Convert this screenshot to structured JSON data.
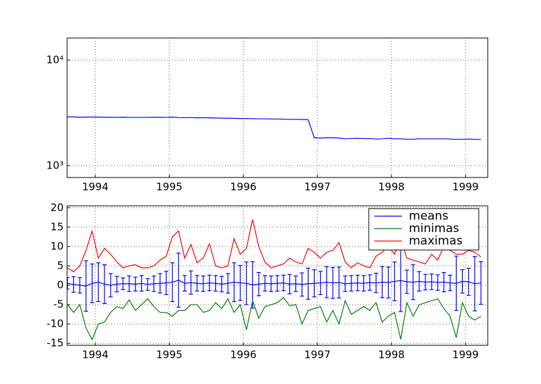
{
  "chart_data": [
    {
      "type": "line",
      "log_y": true,
      "grid": true,
      "x": [
        1993.625,
        1993.708,
        1993.792,
        1993.875,
        1993.958,
        1994.042,
        1994.125,
        1994.208,
        1994.292,
        1994.375,
        1994.458,
        1994.542,
        1994.625,
        1994.708,
        1994.792,
        1994.875,
        1994.958,
        1995.042,
        1995.125,
        1995.208,
        1995.292,
        1995.375,
        1995.458,
        1995.542,
        1995.625,
        1995.708,
        1995.792,
        1995.875,
        1995.958,
        1996.042,
        1996.125,
        1996.208,
        1996.292,
        1996.375,
        1996.458,
        1996.542,
        1996.625,
        1996.708,
        1996.792,
        1996.875,
        1996.958,
        1997.042,
        1997.125,
        1997.208,
        1997.292,
        1997.375,
        1997.458,
        1997.542,
        1997.625,
        1997.708,
        1997.792,
        1997.875,
        1997.958,
        1998.042,
        1998.125,
        1998.208,
        1998.292,
        1998.375,
        1998.458,
        1998.542,
        1998.625,
        1998.708,
        1998.792,
        1998.875,
        1998.958,
        1999.042,
        1999.125,
        1999.208
      ],
      "series": [
        {
          "color": "#0000ff",
          "values": [
            2900,
            2900,
            2880,
            2890,
            2890,
            2890,
            2880,
            2880,
            2870,
            2880,
            2870,
            2870,
            2870,
            2870,
            2880,
            2880,
            2870,
            2890,
            2860,
            2850,
            2860,
            2840,
            2850,
            2840,
            2830,
            2820,
            2820,
            2810,
            2800,
            2800,
            2790,
            2780,
            2780,
            2770,
            2770,
            2760,
            2750,
            2750,
            2740,
            2730,
            1840,
            1830,
            1840,
            1840,
            1830,
            1800,
            1810,
            1820,
            1810,
            1810,
            1790,
            1800,
            1820,
            1800,
            1800,
            1780,
            1780,
            1800,
            1800,
            1800,
            1800,
            1800,
            1790,
            1780,
            1780,
            1790,
            1780,
            1770
          ]
        }
      ],
      "xlim": [
        1993.62,
        1999.3
      ],
      "xticks": [
        1994,
        1995,
        1996,
        1997,
        1998,
        1999
      ],
      "ylim": [
        774,
        16200
      ],
      "yticks": [
        {
          "value": 1000,
          "label": "10³"
        },
        {
          "value": 10000,
          "label": "10⁴"
        }
      ]
    },
    {
      "type": "line",
      "grid": true,
      "legend": "upper right",
      "x": [
        1993.625,
        1993.708,
        1993.792,
        1993.875,
        1993.958,
        1994.042,
        1994.125,
        1994.208,
        1994.292,
        1994.375,
        1994.458,
        1994.542,
        1994.625,
        1994.708,
        1994.792,
        1994.875,
        1994.958,
        1995.042,
        1995.125,
        1995.208,
        1995.292,
        1995.375,
        1995.458,
        1995.542,
        1995.625,
        1995.708,
        1995.792,
        1995.875,
        1995.958,
        1996.042,
        1996.125,
        1996.208,
        1996.292,
        1996.375,
        1996.458,
        1996.542,
        1996.625,
        1996.708,
        1996.792,
        1996.875,
        1996.958,
        1997.042,
        1997.125,
        1997.208,
        1997.292,
        1997.375,
        1997.458,
        1997.542,
        1997.625,
        1997.708,
        1997.792,
        1997.875,
        1997.958,
        1998.042,
        1998.125,
        1998.208,
        1998.292,
        1998.375,
        1998.458,
        1998.542,
        1998.625,
        1998.708,
        1998.792,
        1998.875,
        1998.958,
        1999.042,
        1999.125,
        1999.208
      ],
      "series": [
        {
          "name": "means",
          "color": "#0000ff",
          "values": [
            0.5,
            0.2,
            0,
            -0.2,
            0.5,
            0.8,
            0.3,
            0,
            0.3,
            0.4,
            0.4,
            0.3,
            0.5,
            0.2,
            0.4,
            0.5,
            0.6,
            0.8,
            1.3,
            0.5,
            0.7,
            0.5,
            0.4,
            0.6,
            0.5,
            0.3,
            0.5,
            0.8,
            0.6,
            0.5,
            0.1,
            0.3,
            0.5,
            0.4,
            0.5,
            0.6,
            0.3,
            0.4,
            0.2,
            0.4,
            0.5,
            0.6,
            0.8,
            0.6,
            0.7,
            0.4,
            0.5,
            0.6,
            0.5,
            0.7,
            0.6,
            0.8,
            0.7,
            1,
            1.2,
            0.9,
            0.8,
            1,
            0.8,
            0.9,
            0.7,
            0.8,
            0.6,
            0.5,
            1,
            0.9,
            0.4,
            0.6
          ],
          "errors": [
            1.5,
            2,
            2,
            6.5,
            5,
            5,
            5,
            3,
            2,
            1.5,
            2,
            1.8,
            2,
            1.5,
            2,
            2.5,
            3,
            5,
            7,
            2,
            3,
            2,
            2,
            2,
            2,
            2,
            2.5,
            5,
            4.5,
            5.5,
            6,
            3,
            2,
            2,
            2,
            2,
            2.5,
            2,
            3,
            4,
            3.5,
            3,
            4,
            4,
            4,
            2,
            2,
            2,
            2,
            2,
            2.5,
            4,
            4,
            5,
            8,
            3,
            4.5,
            2.5,
            2,
            2,
            2,
            2.5,
            2,
            7,
            3,
            3.5,
            7,
            5.5
          ]
        },
        {
          "name": "minimas",
          "color": "#008000",
          "values": [
            -5,
            -7,
            -5,
            -11,
            -14,
            -10,
            -9.5,
            -7,
            -5.5,
            -6,
            -3.8,
            -6.5,
            -5,
            -3.5,
            -5.5,
            -7,
            -7,
            -8,
            -6.5,
            -6.5,
            -5,
            -5,
            -7,
            -6.5,
            -4.5,
            -6,
            -3.5,
            -7,
            -5,
            -11.5,
            -4,
            -8.5,
            -5.5,
            -5,
            -4.5,
            -3.2,
            -5.3,
            -5,
            -10,
            -6.5,
            -6,
            -5.5,
            -9.5,
            -6.5,
            -10,
            -4,
            -7.5,
            -6.5,
            -5.5,
            -6.5,
            -4.5,
            -9.5,
            -8,
            -7,
            -14,
            -4.5,
            -8,
            -5,
            -4.5,
            -4,
            -3.5,
            -6,
            -8,
            -13.5,
            -4.5,
            -8,
            -9,
            -8
          ]
        },
        {
          "name": "maximas",
          "color": "#ff0000",
          "values": [
            4.5,
            3.5,
            5,
            9,
            14,
            7,
            9.5,
            8,
            6,
            4.5,
            5,
            5.3,
            4.5,
            4.5,
            5,
            6.5,
            7.5,
            12.5,
            14,
            7,
            10.5,
            5.8,
            7,
            10.7,
            5,
            4.5,
            5,
            12,
            8,
            9.5,
            17,
            10,
            6,
            4.5,
            5,
            5.5,
            7,
            6,
            5.5,
            9.5,
            8.5,
            7,
            8.5,
            9,
            11,
            6,
            4.5,
            5.8,
            5,
            4.5,
            7.5,
            8.5,
            10,
            8,
            12,
            7,
            6.5,
            6,
            5.5,
            8,
            6.5,
            10,
            9,
            8,
            8,
            9,
            8.5,
            7.3
          ]
        }
      ],
      "xlim": [
        1993.62,
        1999.3
      ],
      "xticks": [
        1994,
        1995,
        1996,
        1997,
        1998,
        1999
      ],
      "ylim": [
        -15.5,
        20.5
      ],
      "yticks": [
        -15,
        -10,
        -5,
        0,
        5,
        10,
        15,
        20
      ]
    }
  ]
}
